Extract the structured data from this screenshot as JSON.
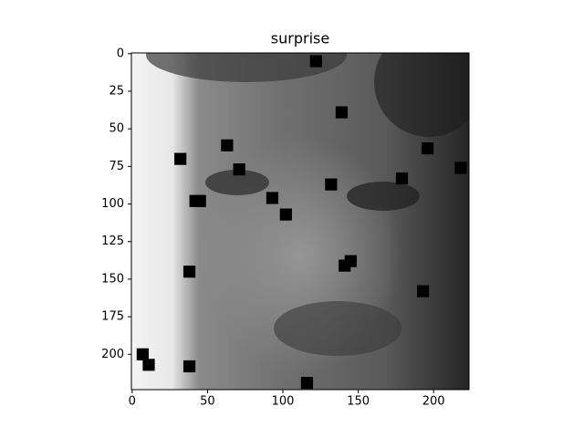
{
  "chart_data": {
    "type": "image",
    "title": "surprise",
    "xlim": [
      -0.5,
      223.5
    ],
    "ylim": [
      223.5,
      -0.5
    ],
    "xticks": [
      0,
      50,
      100,
      150,
      200
    ],
    "yticks": [
      0,
      25,
      50,
      75,
      100,
      125,
      150,
      175,
      200
    ],
    "patch_color": "#000000",
    "patch_size": 8,
    "patches": {
      "x": [
        122,
        139,
        63,
        32,
        71,
        196,
        218,
        179,
        132,
        42,
        45,
        93,
        102,
        145,
        141,
        38,
        193,
        7,
        11,
        38,
        116
      ],
      "y": [
        5,
        39,
        61,
        70,
        77,
        63,
        76,
        83,
        87,
        98,
        98,
        96,
        107,
        138,
        141,
        145,
        158,
        200,
        207,
        208,
        219
      ]
    }
  }
}
